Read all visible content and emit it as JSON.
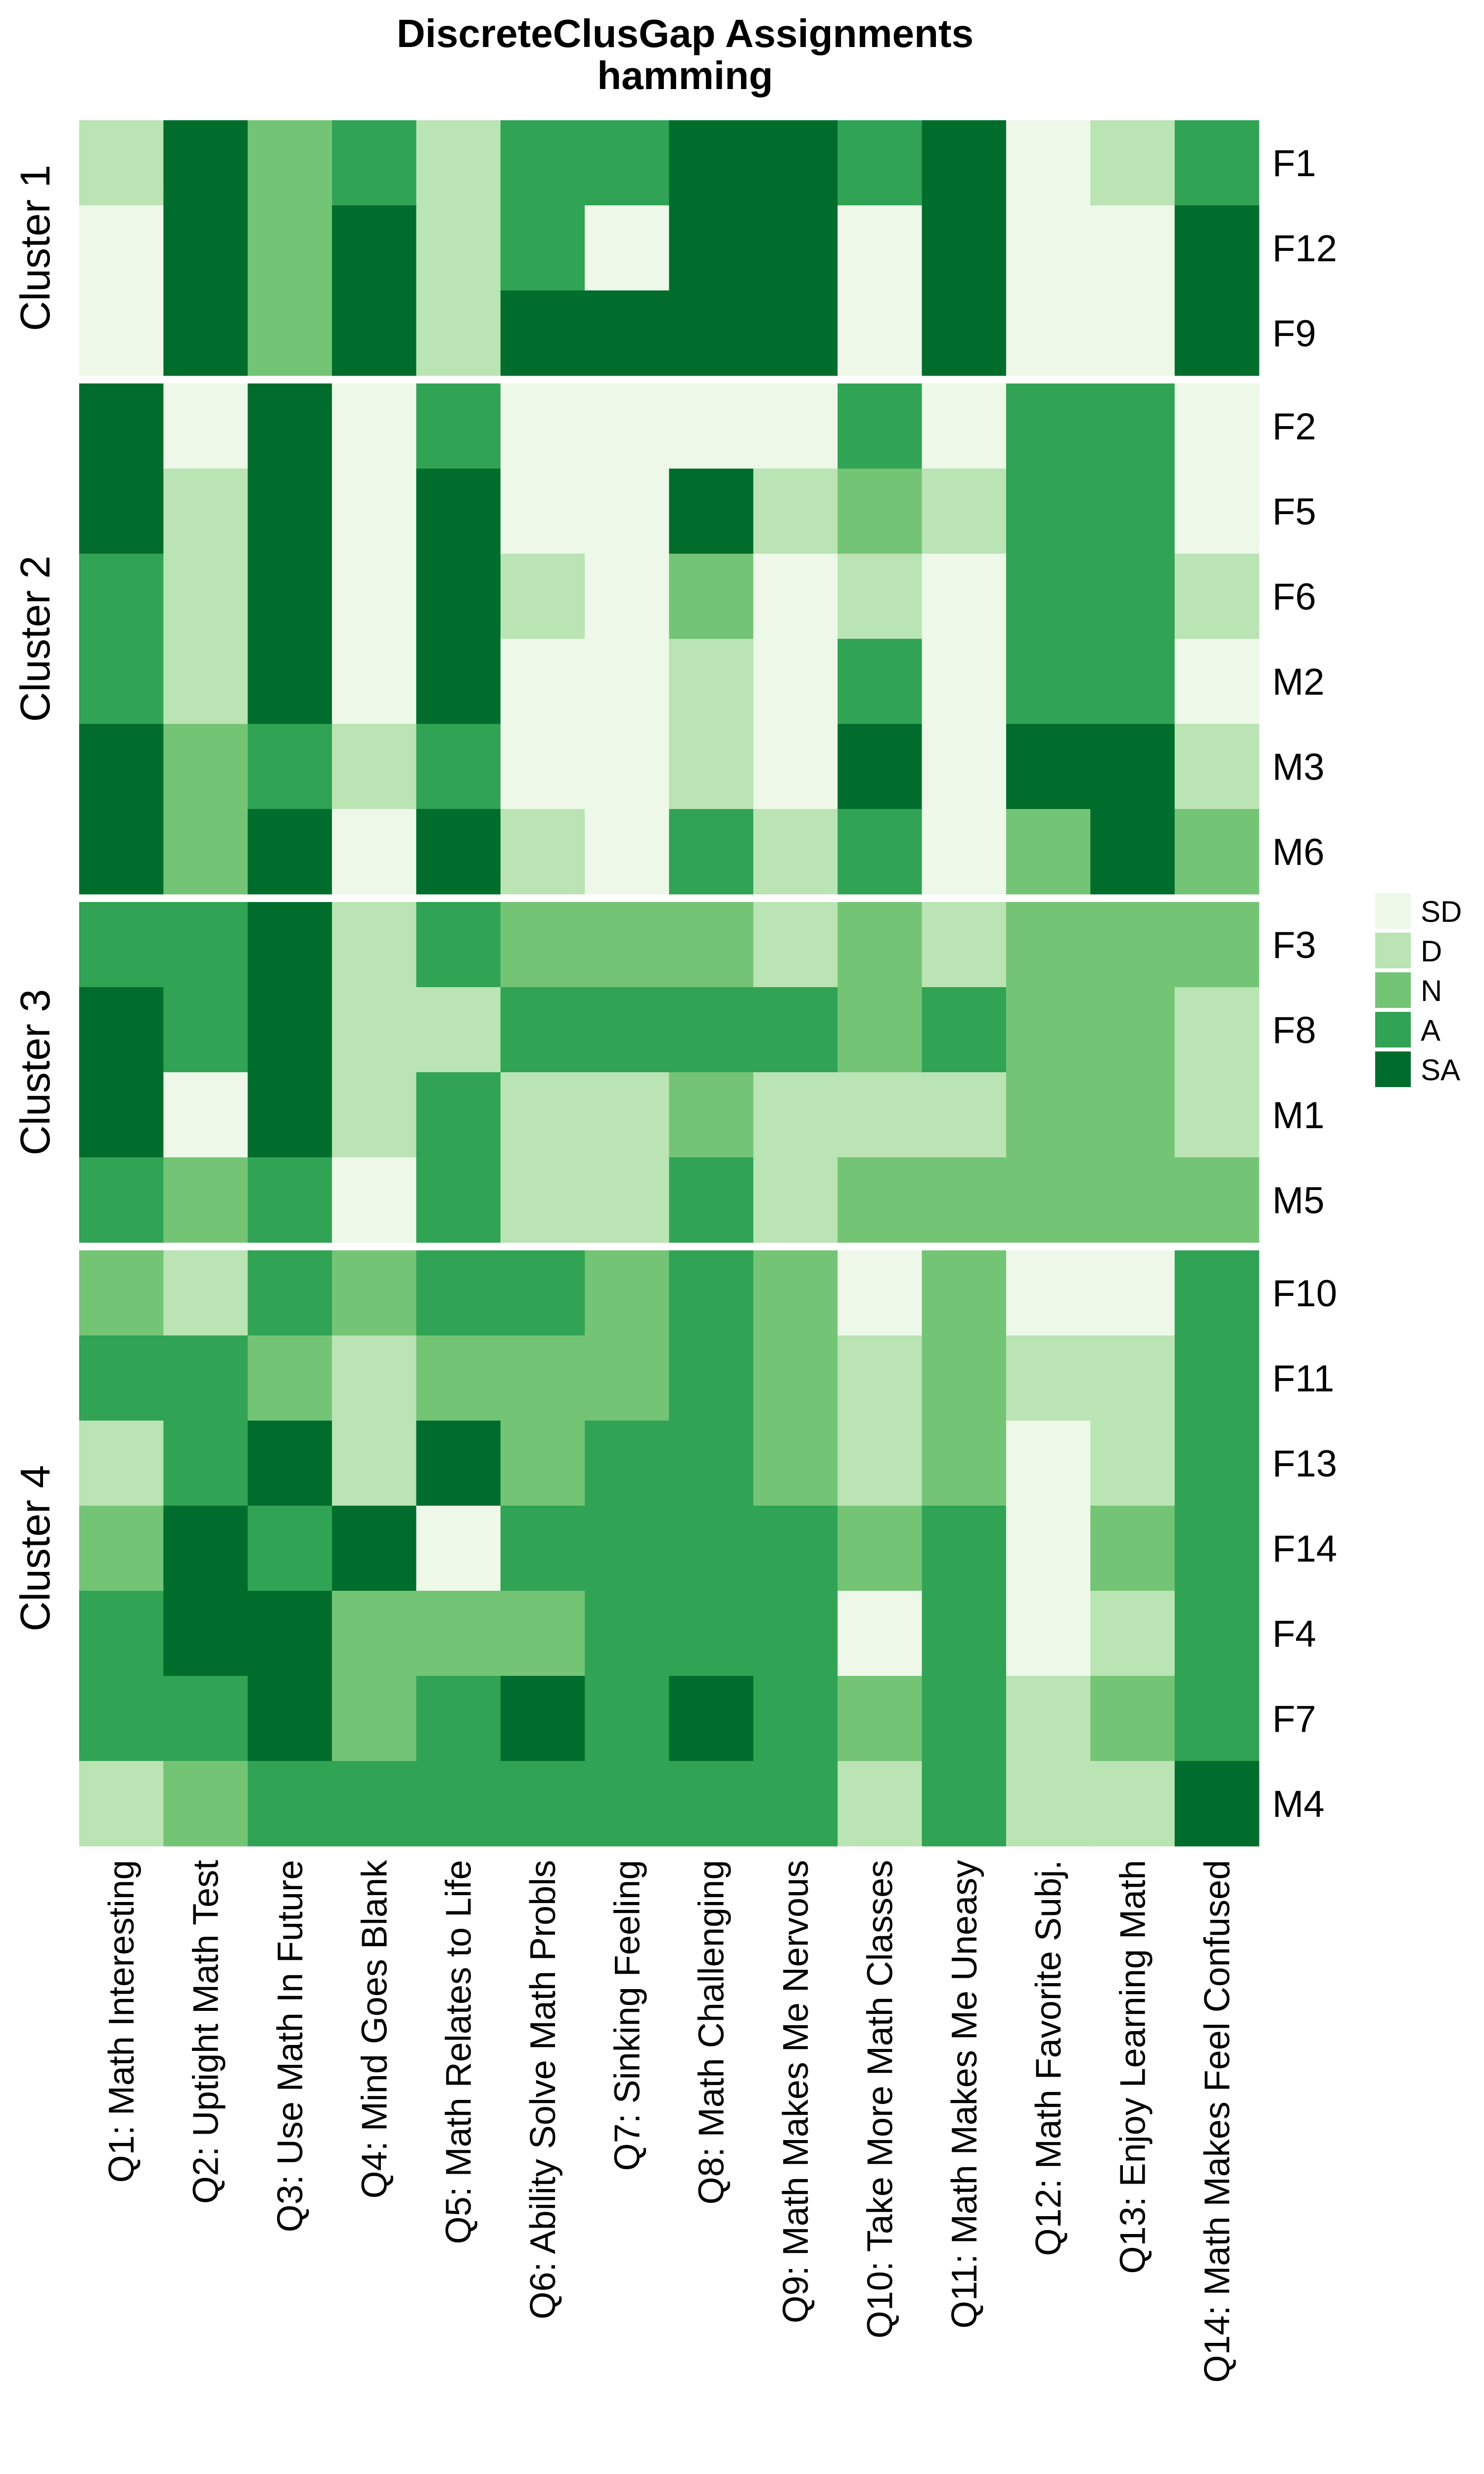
{
  "chart_data": {
    "type": "heatmap",
    "title": "DiscreteClusGap Assignments",
    "subtitle": "hamming",
    "columns": [
      "Q1: Math Interesting",
      "Q2: Uptight Math Test",
      "Q3: Use Math In Future",
      "Q4: Mind Goes Blank",
      "Q5: Math Relates to Life",
      "Q6: Ability Solve Math Probls",
      "Q7: Sinking Feeling",
      "Q8: Math Challenging",
      "Q9: Math Makes Me Nervous",
      "Q10: Take More Math Classes",
      "Q11: Math Makes Me Uneasy",
      "Q12: Math Favorite Subj.",
      "Q13: Enjoy Learning Math",
      "Q14: Math Makes Feel Confused"
    ],
    "legend": {
      "position": "right",
      "levels": [
        {
          "label": "SD",
          "color": "#EDF8E9"
        },
        {
          "label": "D",
          "color": "#BAE4B3"
        },
        {
          "label": "N",
          "color": "#74C476"
        },
        {
          "label": "A",
          "color": "#31A354"
        },
        {
          "label": "SA",
          "color": "#006D2C"
        }
      ]
    },
    "clusters": [
      {
        "label": "Cluster 1",
        "rows": [
          {
            "id": "F1",
            "values": [
              "D",
              "SA",
              "N",
              "A",
              "D",
              "A",
              "A",
              "SA",
              "SA",
              "A",
              "SA",
              "SD",
              "D",
              "A"
            ]
          },
          {
            "id": "F12",
            "values": [
              "SD",
              "SA",
              "N",
              "SA",
              "D",
              "A",
              "SD",
              "SA",
              "SA",
              "SD",
              "SA",
              "SD",
              "SD",
              "SA"
            ]
          },
          {
            "id": "F9",
            "values": [
              "SD",
              "SA",
              "N",
              "SA",
              "D",
              "SA",
              "SA",
              "SA",
              "SA",
              "SD",
              "SA",
              "SD",
              "SD",
              "SA"
            ]
          }
        ]
      },
      {
        "label": "Cluster 2",
        "rows": [
          {
            "id": "F2",
            "values": [
              "SA",
              "SD",
              "SA",
              "SD",
              "A",
              "SD",
              "SD",
              "SD",
              "SD",
              "A",
              "SD",
              "A",
              "A",
              "SD"
            ]
          },
          {
            "id": "F5",
            "values": [
              "SA",
              "D",
              "SA",
              "SD",
              "SA",
              "SD",
              "SD",
              "SA",
              "D",
              "N",
              "D",
              "A",
              "A",
              "SD"
            ]
          },
          {
            "id": "F6",
            "values": [
              "A",
              "D",
              "SA",
              "SD",
              "SA",
              "D",
              "SD",
              "N",
              "SD",
              "D",
              "SD",
              "A",
              "A",
              "D"
            ]
          },
          {
            "id": "M2",
            "values": [
              "A",
              "D",
              "SA",
              "SD",
              "SA",
              "SD",
              "SD",
              "D",
              "SD",
              "A",
              "SD",
              "A",
              "A",
              "SD"
            ]
          },
          {
            "id": "M3",
            "values": [
              "SA",
              "N",
              "A",
              "D",
              "A",
              "SD",
              "SD",
              "D",
              "SD",
              "SA",
              "SD",
              "SA",
              "SA",
              "D"
            ]
          },
          {
            "id": "M6",
            "values": [
              "SA",
              "N",
              "SA",
              "SD",
              "SA",
              "D",
              "SD",
              "A",
              "D",
              "A",
              "SD",
              "N",
              "SA",
              "N"
            ]
          }
        ]
      },
      {
        "label": "Cluster 3",
        "rows": [
          {
            "id": "F3",
            "values": [
              "A",
              "A",
              "SA",
              "D",
              "A",
              "N",
              "N",
              "N",
              "D",
              "N",
              "D",
              "N",
              "N",
              "N"
            ]
          },
          {
            "id": "F8",
            "values": [
              "SA",
              "A",
              "SA",
              "D",
              "D",
              "A",
              "A",
              "A",
              "A",
              "N",
              "A",
              "N",
              "N",
              "D"
            ]
          },
          {
            "id": "M1",
            "values": [
              "SA",
              "SD",
              "SA",
              "D",
              "A",
              "D",
              "D",
              "N",
              "D",
              "D",
              "D",
              "N",
              "N",
              "D"
            ]
          },
          {
            "id": "M5",
            "values": [
              "A",
              "N",
              "A",
              "SD",
              "A",
              "D",
              "D",
              "A",
              "D",
              "N",
              "N",
              "N",
              "N",
              "N"
            ]
          }
        ]
      },
      {
        "label": "Cluster 4",
        "rows": [
          {
            "id": "F10",
            "values": [
              "N",
              "D",
              "A",
              "N",
              "A",
              "A",
              "N",
              "A",
              "N",
              "SD",
              "N",
              "SD",
              "SD",
              "A"
            ]
          },
          {
            "id": "F11",
            "values": [
              "A",
              "A",
              "N",
              "D",
              "N",
              "N",
              "N",
              "A",
              "N",
              "D",
              "N",
              "D",
              "D",
              "A"
            ]
          },
          {
            "id": "F13",
            "values": [
              "D",
              "A",
              "SA",
              "D",
              "SA",
              "N",
              "A",
              "A",
              "N",
              "D",
              "N",
              "SD",
              "D",
              "A"
            ]
          },
          {
            "id": "F14",
            "values": [
              "N",
              "SA",
              "A",
              "SA",
              "SD",
              "A",
              "A",
              "A",
              "A",
              "N",
              "A",
              "SD",
              "N",
              "A"
            ]
          },
          {
            "id": "F4",
            "values": [
              "A",
              "SA",
              "SA",
              "N",
              "N",
              "N",
              "A",
              "A",
              "A",
              "SD",
              "A",
              "SD",
              "D",
              "A"
            ]
          },
          {
            "id": "F7",
            "values": [
              "A",
              "A",
              "SA",
              "N",
              "A",
              "SA",
              "A",
              "SA",
              "A",
              "N",
              "A",
              "D",
              "N",
              "A"
            ]
          },
          {
            "id": "M4",
            "values": [
              "D",
              "N",
              "A",
              "A",
              "A",
              "A",
              "A",
              "A",
              "A",
              "D",
              "A",
              "D",
              "D",
              "SA"
            ]
          }
        ]
      }
    ]
  }
}
